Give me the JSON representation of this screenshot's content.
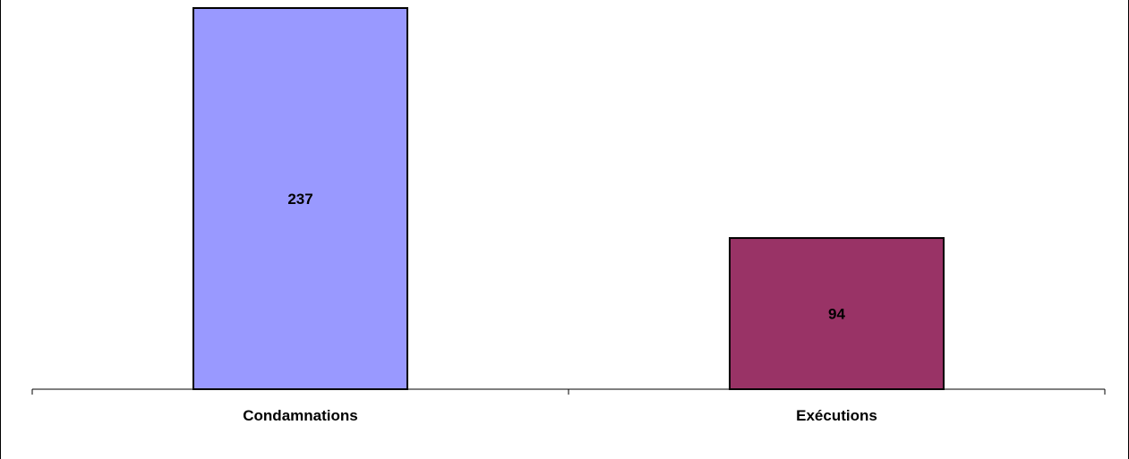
{
  "chart_data": {
    "type": "bar",
    "categories": [
      "Condamnations",
      "Exécutions"
    ],
    "values": [
      237,
      94
    ],
    "data_labels": [
      "237",
      "94"
    ],
    "bar_colors": [
      "#9999ff",
      "#993366"
    ],
    "ylim": [
      0,
      237
    ],
    "grid": false,
    "legend": "none"
  }
}
